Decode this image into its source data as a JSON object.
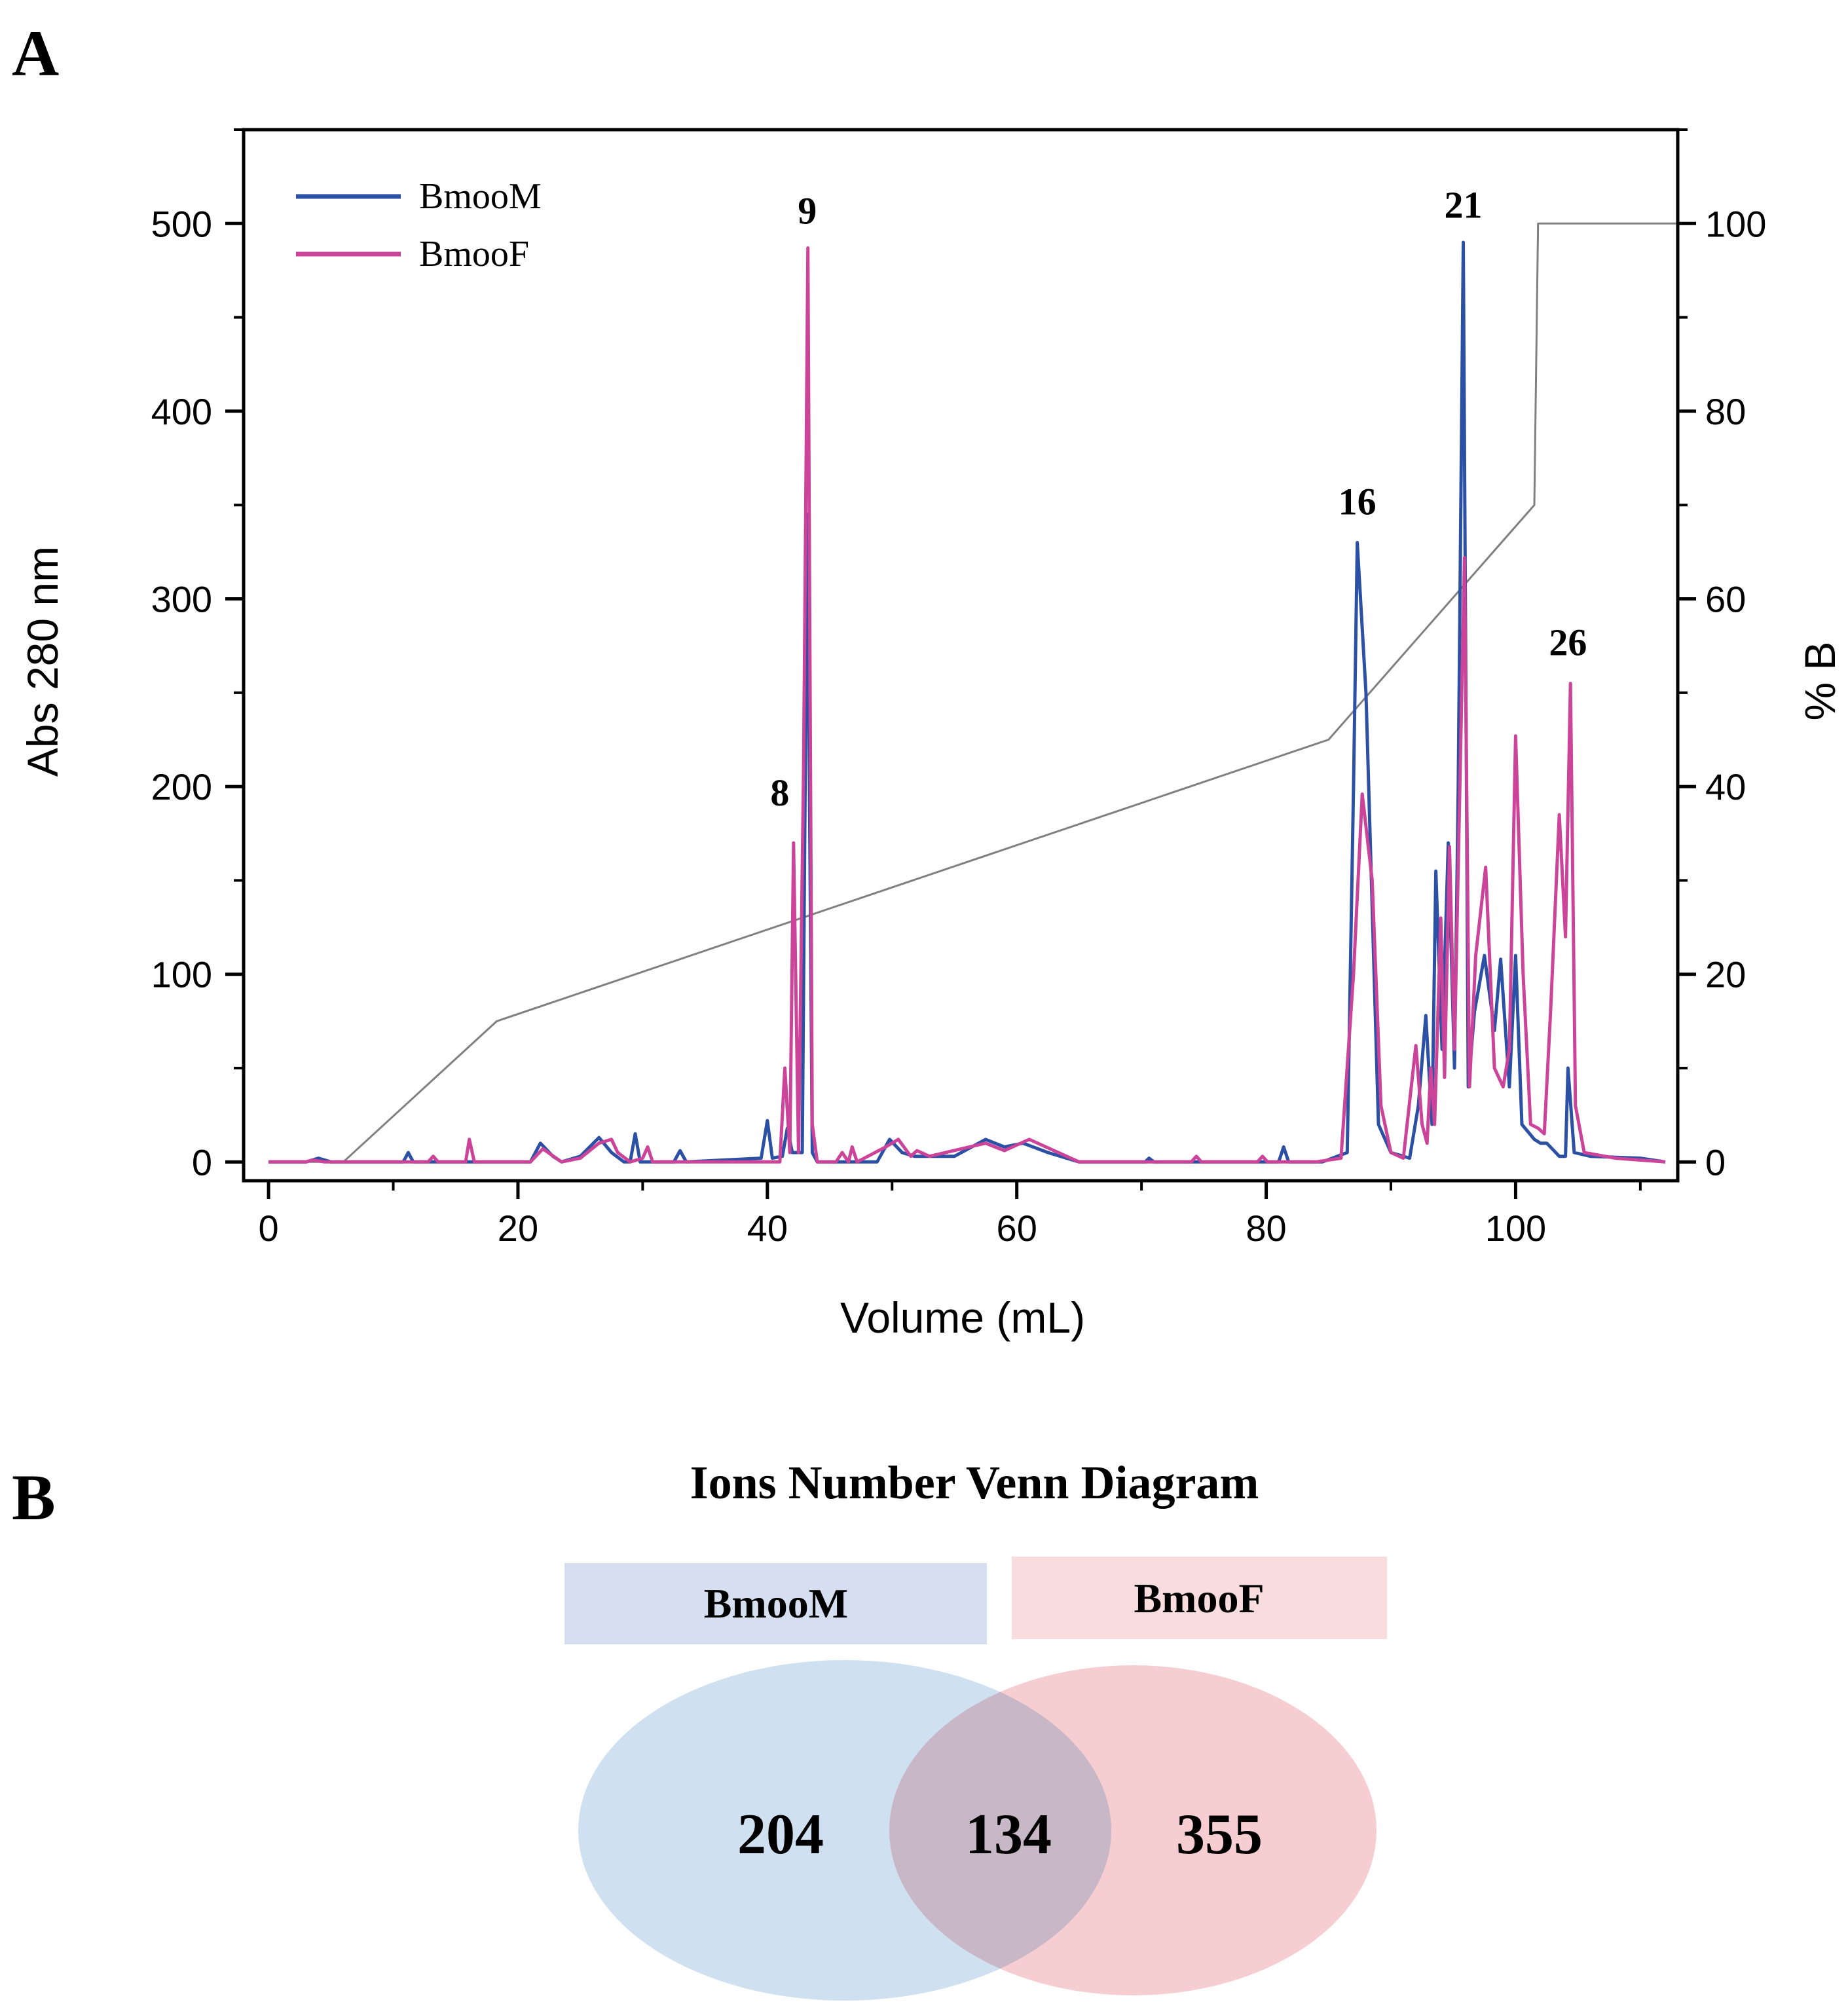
{
  "panel_a_label": "A",
  "panel_b_label": "B",
  "chart_data": [
    {
      "type": "line",
      "xlabel": "Volume (mL)",
      "ylabel": "Abs 280 nm",
      "y2label": "% B",
      "xlim": [
        -2,
        113
      ],
      "ylim": [
        -10,
        550
      ],
      "y2lim": [
        -2,
        110
      ],
      "xticks": [
        0,
        20,
        40,
        60,
        80,
        100
      ],
      "yticks": [
        0,
        100,
        200,
        300,
        400,
        500
      ],
      "y2ticks": [
        0,
        20,
        40,
        60,
        80,
        100
      ],
      "legend": [
        "BmooM",
        "BmooF"
      ],
      "legend_position": "top-left",
      "colors": {
        "BmooM": "#2b50a4",
        "BmooF": "#cc4499",
        "gradient": "#808080"
      },
      "series": [
        {
          "name": "BmooM",
          "points": [
            [
              0,
              0
            ],
            [
              3,
              0
            ],
            [
              4,
              2
            ],
            [
              5,
              0
            ],
            [
              10.8,
              0
            ],
            [
              11.2,
              5
            ],
            [
              11.6,
              0
            ],
            [
              21,
              0
            ],
            [
              21.8,
              10
            ],
            [
              22.8,
              3
            ],
            [
              23.5,
              0
            ],
            [
              25,
              3
            ],
            [
              26.5,
              13
            ],
            [
              27.5,
              5
            ],
            [
              28.5,
              0
            ],
            [
              29,
              0
            ],
            [
              29.4,
              15
            ],
            [
              29.8,
              0
            ],
            [
              32.5,
              0
            ],
            [
              33,
              6
            ],
            [
              33.5,
              0
            ],
            [
              39.5,
              2
            ],
            [
              40,
              22
            ],
            [
              40.4,
              2
            ],
            [
              41.2,
              3
            ],
            [
              41.6,
              18
            ],
            [
              42,
              5
            ],
            [
              42.8,
              5
            ],
            [
              43.2,
              345
            ],
            [
              43.6,
              5
            ],
            [
              44,
              0
            ],
            [
              48.8,
              0
            ],
            [
              49.8,
              12
            ],
            [
              50.8,
              5
            ],
            [
              51.8,
              3
            ],
            [
              53,
              3
            ],
            [
              55,
              3
            ],
            [
              57.5,
              12
            ],
            [
              59,
              8
            ],
            [
              60.5,
              10
            ],
            [
              62.5,
              5
            ],
            [
              65,
              0
            ],
            [
              70.3,
              0
            ],
            [
              70.6,
              2
            ],
            [
              71,
              0
            ],
            [
              81,
              0
            ],
            [
              81.4,
              8
            ],
            [
              81.8,
              0
            ],
            [
              84.5,
              0
            ],
            [
              86.5,
              5
            ],
            [
              87,
              200
            ],
            [
              87.3,
              330
            ],
            [
              88,
              250
            ],
            [
              89,
              20
            ],
            [
              90,
              5
            ],
            [
              91.5,
              2
            ],
            [
              92.2,
              30
            ],
            [
              92.8,
              78
            ],
            [
              93.3,
              20
            ],
            [
              93.6,
              155
            ],
            [
              94.1,
              60
            ],
            [
              94.6,
              170
            ],
            [
              95.1,
              50
            ],
            [
              95.4,
              200
            ],
            [
              95.8,
              490
            ],
            [
              96.2,
              40
            ],
            [
              96.7,
              80
            ],
            [
              97.5,
              110
            ],
            [
              98.3,
              70
            ],
            [
              98.8,
              108
            ],
            [
              99.5,
              40
            ],
            [
              100,
              110
            ],
            [
              100.5,
              20
            ],
            [
              101.5,
              12
            ],
            [
              102,
              10
            ],
            [
              102.5,
              10
            ],
            [
              103.5,
              3
            ],
            [
              104,
              3
            ],
            [
              104.2,
              50
            ],
            [
              104.7,
              5
            ],
            [
              106,
              3
            ],
            [
              110,
              2
            ],
            [
              112,
              0
            ]
          ]
        },
        {
          "name": "BmooF",
          "points": [
            [
              0,
              0
            ],
            [
              3,
              0
            ],
            [
              3.5,
              1
            ],
            [
              4.5,
              0
            ],
            [
              12.8,
              0
            ],
            [
              13.2,
              3
            ],
            [
              13.6,
              0
            ],
            [
              15.8,
              0
            ],
            [
              16.1,
              12
            ],
            [
              16.5,
              0
            ],
            [
              21,
              0
            ],
            [
              22,
              7
            ],
            [
              23.5,
              0
            ],
            [
              25,
              2
            ],
            [
              26.5,
              10
            ],
            [
              27.5,
              12
            ],
            [
              28,
              5
            ],
            [
              29,
              0
            ],
            [
              30,
              2
            ],
            [
              30.4,
              8
            ],
            [
              30.8,
              0
            ],
            [
              41,
              0
            ],
            [
              41.4,
              50
            ],
            [
              41.8,
              5
            ],
            [
              42.1,
              170
            ],
            [
              42.5,
              5
            ],
            [
              42.9,
              210
            ],
            [
              43.25,
              487
            ],
            [
              43.6,
              20
            ],
            [
              44,
              0
            ],
            [
              45.5,
              0
            ],
            [
              46,
              5
            ],
            [
              46.5,
              0
            ],
            [
              46.8,
              8
            ],
            [
              47.2,
              0
            ],
            [
              49.5,
              8
            ],
            [
              50.5,
              12
            ],
            [
              51.5,
              3
            ],
            [
              52,
              6
            ],
            [
              53,
              3
            ],
            [
              57.5,
              10
            ],
            [
              59,
              6
            ],
            [
              61,
              12
            ],
            [
              63,
              6
            ],
            [
              65,
              0
            ],
            [
              74,
              0
            ],
            [
              74.4,
              3
            ],
            [
              74.8,
              0
            ],
            [
              79.3,
              0
            ],
            [
              79.7,
              3
            ],
            [
              80.1,
              0
            ],
            [
              84,
              0
            ],
            [
              86,
              2
            ],
            [
              87,
              100
            ],
            [
              87.7,
              196
            ],
            [
              88.5,
              150
            ],
            [
              89.2,
              30
            ],
            [
              90,
              5
            ],
            [
              91,
              2
            ],
            [
              92,
              62
            ],
            [
              92.5,
              20
            ],
            [
              92.9,
              10
            ],
            [
              93.2,
              50
            ],
            [
              93.5,
              20
            ],
            [
              94,
              130
            ],
            [
              94.3,
              45
            ],
            [
              94.7,
              168
            ],
            [
              95.1,
              60
            ],
            [
              95.5,
              190
            ],
            [
              95.9,
              322
            ],
            [
              96.3,
              40
            ],
            [
              96.8,
              110
            ],
            [
              97.6,
              157
            ],
            [
              98.3,
              50
            ],
            [
              99,
              40
            ],
            [
              99.5,
              60
            ],
            [
              100,
              227
            ],
            [
              100.6,
              100
            ],
            [
              101.2,
              20
            ],
            [
              101.8,
              18
            ],
            [
              102.3,
              15
            ],
            [
              102.8,
              80
            ],
            [
              103.5,
              185
            ],
            [
              104,
              120
            ],
            [
              104.4,
              255
            ],
            [
              104.8,
              30
            ],
            [
              105.5,
              5
            ],
            [
              108,
              2
            ],
            [
              110,
              1
            ],
            [
              112,
              0
            ]
          ]
        },
        {
          "name": "gradient (% B)",
          "axis": "right",
          "points": [
            [
              0,
              0
            ],
            [
              6,
              0
            ],
            [
              18.3,
              15
            ],
            [
              85,
              45
            ],
            [
              101.5,
              70
            ],
            [
              101.8,
              100
            ],
            [
              113,
              100
            ]
          ]
        }
      ],
      "annotations": [
        {
          "label": "8",
          "x": 41.0,
          "y": 190
        },
        {
          "label": "9",
          "x": 43.2,
          "y": 500
        },
        {
          "label": "16",
          "x": 87.3,
          "y": 345
        },
        {
          "label": "21",
          "x": 95.8,
          "y": 503
        },
        {
          "label": "26",
          "x": 104.2,
          "y": 270
        }
      ]
    },
    {
      "type": "venn",
      "title": "Ions Number Venn Diagram",
      "sets": [
        {
          "name": "BmooM",
          "only": 204,
          "color": "#cfe0f1",
          "box_color": "#d6dfef"
        },
        {
          "name": "BmooF",
          "only": 355,
          "color": "#f6cdd0",
          "box_color": "#f8dcde"
        }
      ],
      "intersection": 134,
      "intersection_color": "#c8b7c6"
    }
  ]
}
